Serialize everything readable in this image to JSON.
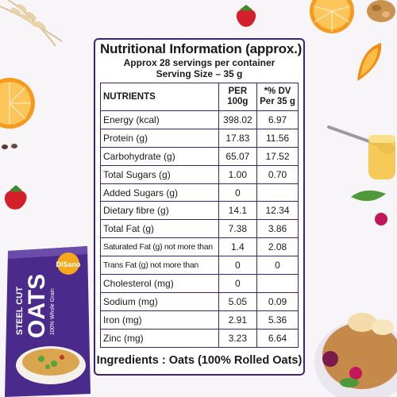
{
  "panel": {
    "title": "Nutritional Information (approx.)",
    "servings_line": "Approx 28  servings per container",
    "serving_size_line": "Serving Size – 35 g",
    "headers": {
      "nutrients": "NUTRIENTS",
      "per100": "PER 100g",
      "dv": "*% DV Per 35 g"
    },
    "rows": [
      {
        "name": "Energy (kcal)",
        "per100": "398.02",
        "dv": "6.97"
      },
      {
        "name": "Protein (g)",
        "per100": "17.83",
        "dv": "11.56"
      },
      {
        "name": "Carbohydrate (g)",
        "per100": "65.07",
        "dv": "17.52"
      },
      {
        "name": "Total Sugars (g)",
        "per100": "1.00",
        "dv": "0.70"
      },
      {
        "name": "Added Sugars (g)",
        "per100": "0",
        "dv": ""
      },
      {
        "name": "Dietary fibre (g)",
        "per100": "14.1",
        "dv": "12.34"
      },
      {
        "name": "Total Fat (g)",
        "per100": "7.38",
        "dv": "3.86"
      },
      {
        "name": "Saturated Fat (g) not more than",
        "per100": "1.4",
        "dv": "2.08"
      },
      {
        "name": "Trans Fat (g) not more than",
        "per100": "0",
        "dv": "0"
      },
      {
        "name": "Cholesterol (mg)",
        "per100": "0",
        "dv": ""
      },
      {
        "name": "Sodium (mg)",
        "per100": "5.05",
        "dv": "0.09"
      },
      {
        "name": "Iron  (mg)",
        "per100": "2.91",
        "dv": "5.36"
      },
      {
        "name": "Zinc (mg)",
        "per100": "3.23",
        "dv": "6.64"
      }
    ],
    "ingredients": "Ingredients : Oats (100% Rolled Oats)"
  },
  "pack": {
    "brand": "DiSano",
    "line1": "STEEL CUT",
    "line2": "OATS",
    "tag": "100% Whole Grain"
  },
  "colors": {
    "border": "#3d2470",
    "pack_purple": "#4a2a8a"
  }
}
